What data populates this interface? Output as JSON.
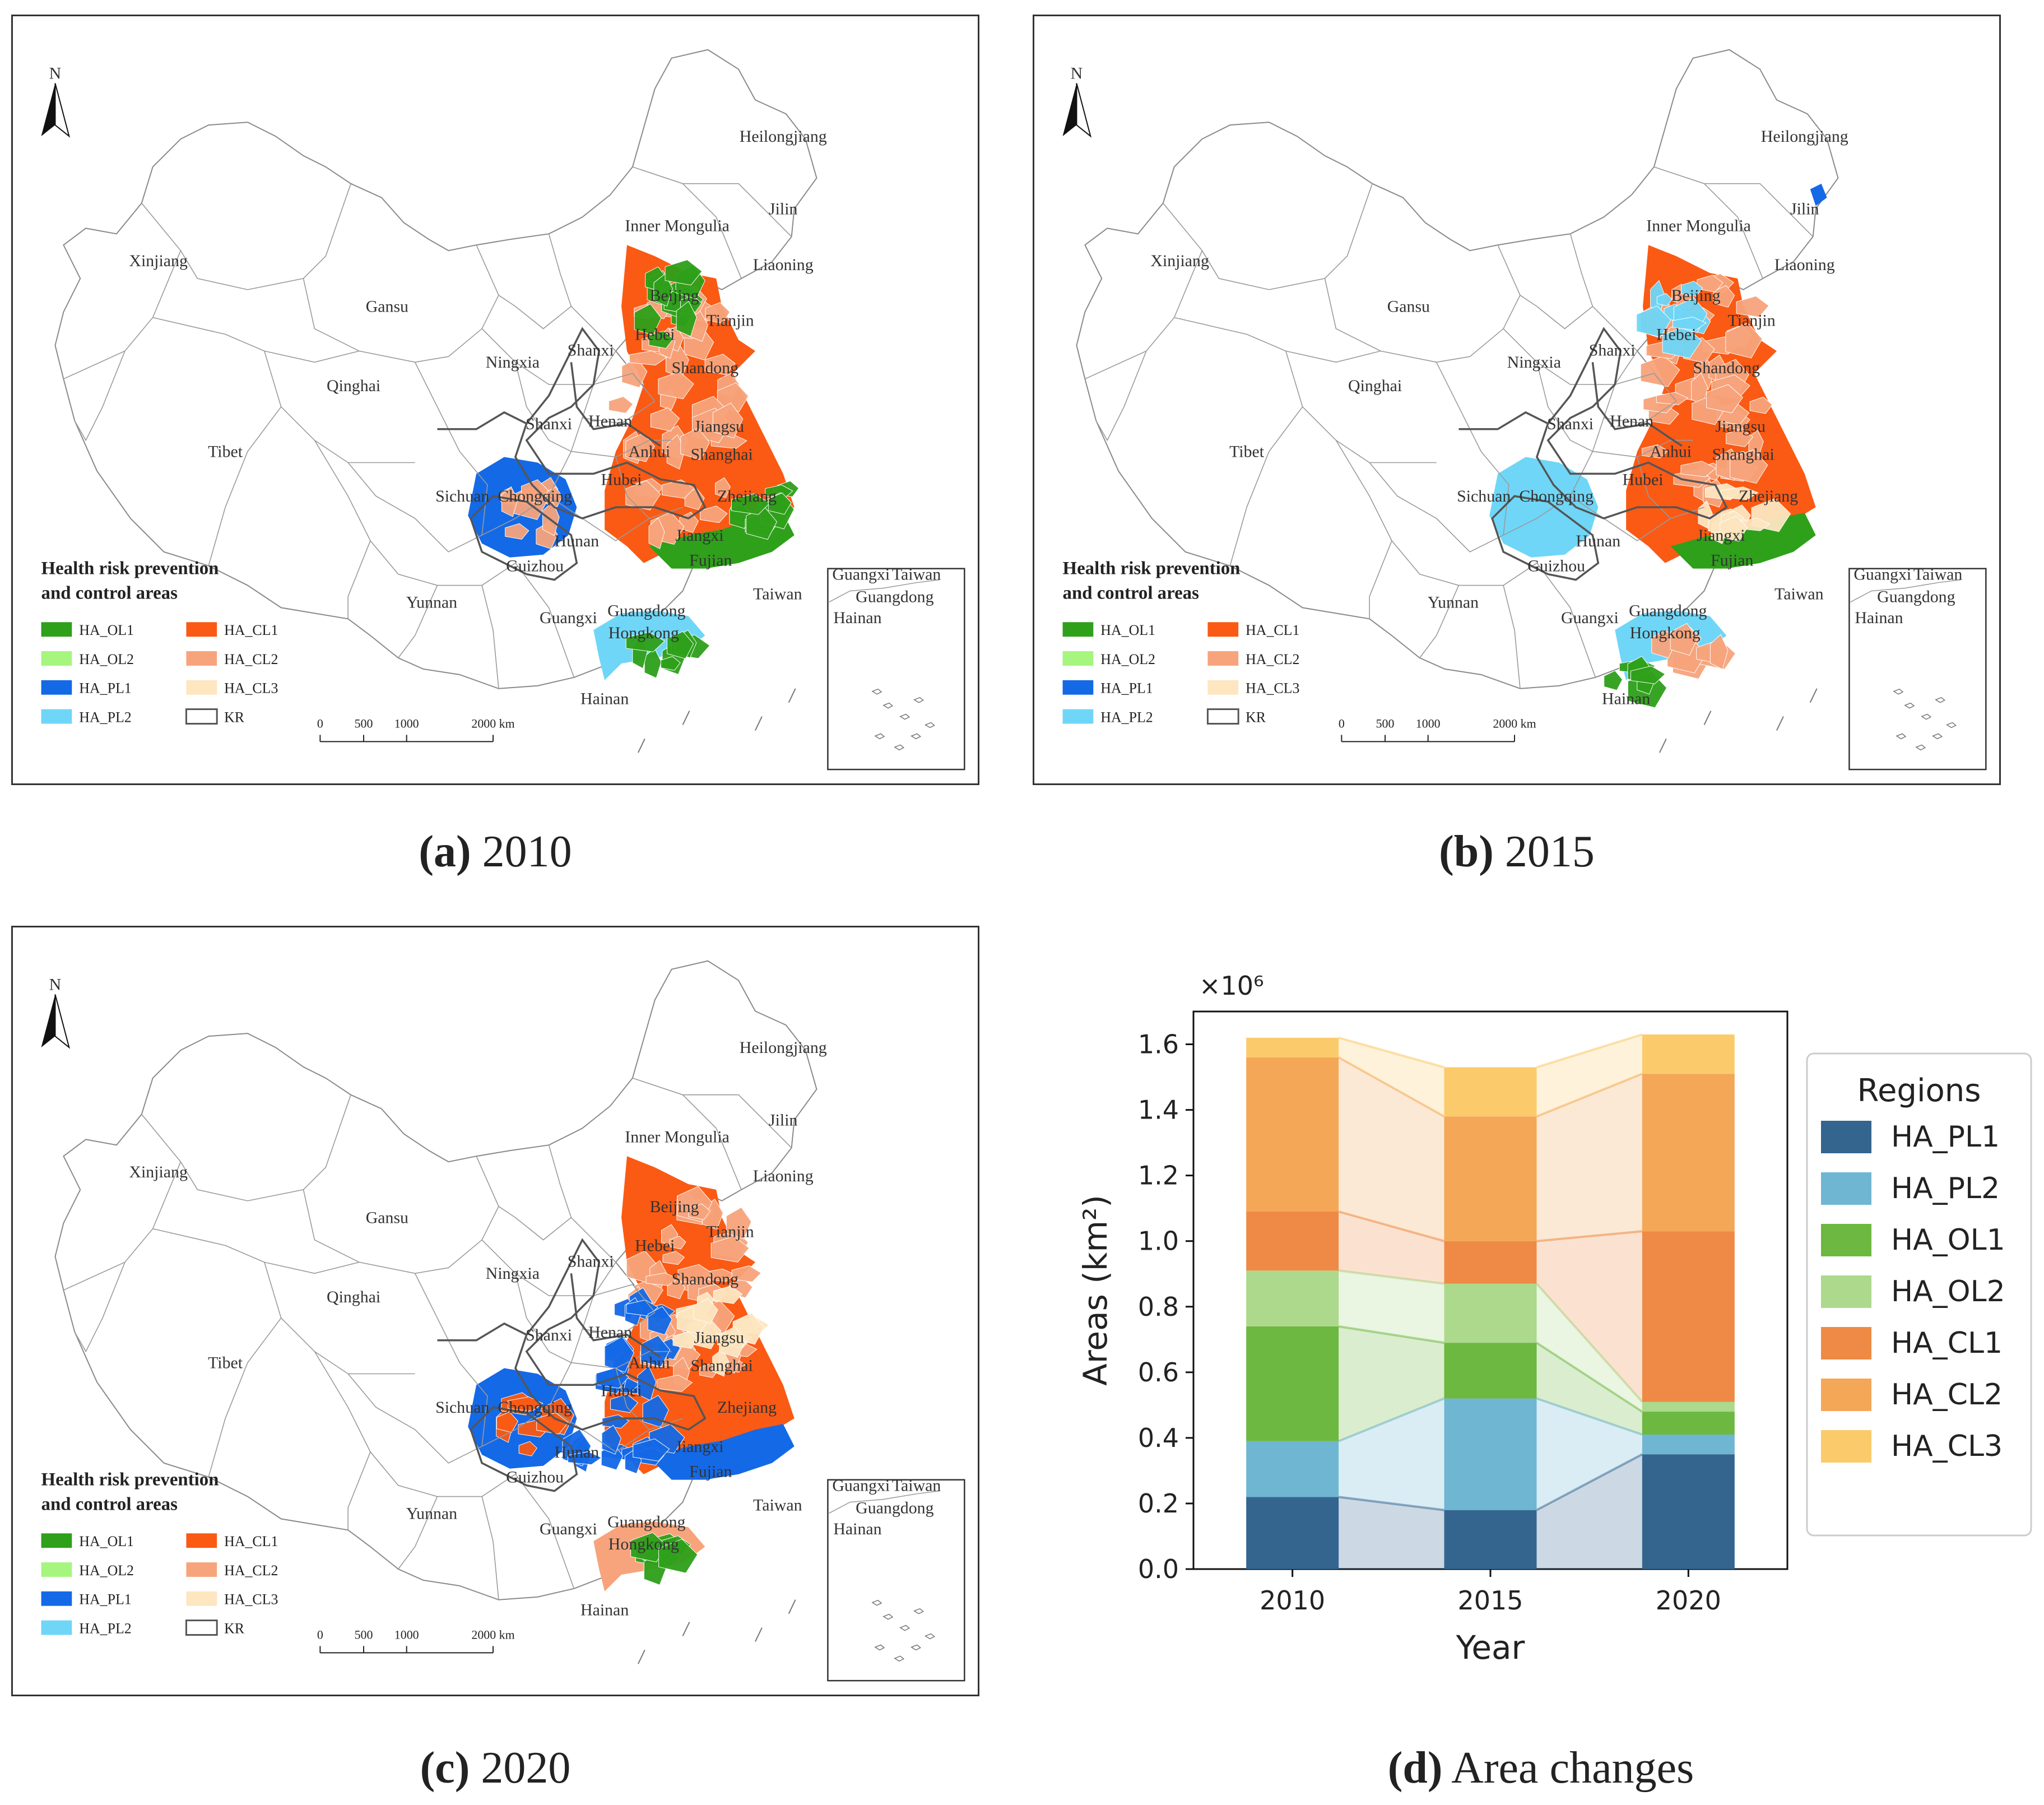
{
  "maps": {
    "legend_title_line1": "Health risk prevention",
    "legend_title_line2": "and control areas",
    "legend_items": [
      {
        "label": "HA_OL1",
        "color": "#2ea01a"
      },
      {
        "label": "HA_OL2",
        "color": "#a6f57e"
      },
      {
        "label": "HA_PL1",
        "color": "#1469e6"
      },
      {
        "label": "HA_PL2",
        "color": "#6fd6f7"
      },
      {
        "label": "HA_CL1",
        "color": "#fa5a14"
      },
      {
        "label": "HA_CL2",
        "color": "#f7a47c"
      },
      {
        "label": "HA_CL3",
        "color": "#fde6c0"
      },
      {
        "label": "KR",
        "color": "#555555"
      }
    ],
    "north_label": "N",
    "scale_labels": [
      "0",
      "500",
      "1000",
      "2000 km"
    ],
    "province_labels": [
      "Heilongjiang",
      "Jilin",
      "Inner Mongulia",
      "Liaoning",
      "Xinjiang",
      "Gansu",
      "Beijing",
      "Tianjin",
      "Hebei",
      "Shanxi",
      "Ningxia",
      "Qinghai",
      "Shandong",
      "Shanxi",
      "Henan",
      "Jiangsu",
      "Tibet",
      "Anhui",
      "Shanghai",
      "Sichuan",
      "Chongqing",
      "Hubei",
      "Zhejiang",
      "Hunan",
      "Jiangxi",
      "Fujian",
      "Guizhou",
      "Yunnan",
      "Taiwan",
      "Guangxi",
      "Guangdong",
      "Hongkong",
      "Hainan"
    ],
    "inset_labels": [
      "Guangxi",
      "Taiwan",
      "Guangdong",
      "Hainan"
    ]
  },
  "captions": {
    "a": {
      "letter": "(a)",
      "text": " 2010"
    },
    "b": {
      "letter": "(b)",
      "text": " 2015"
    },
    "c": {
      "letter": "(c)",
      "text": " 2020"
    },
    "d": {
      "letter": "(d)",
      "text": " Area changes"
    }
  },
  "chart_data": {
    "type": "bar",
    "stacked": true,
    "categories": [
      "2010",
      "2015",
      "2020"
    ],
    "series": [
      {
        "name": "HA_PL1",
        "color": "#33658f",
        "values": [
          0.22,
          0.18,
          0.35
        ]
      },
      {
        "name": "HA_PL2",
        "color": "#6fb6d3",
        "values": [
          0.17,
          0.34,
          0.06
        ]
      },
      {
        "name": "HA_OL1",
        "color": "#6cb840",
        "values": [
          0.35,
          0.17,
          0.07
        ]
      },
      {
        "name": "HA_OL2",
        "color": "#acd98c",
        "values": [
          0.17,
          0.18,
          0.03
        ]
      },
      {
        "name": "HA_CL1",
        "color": "#ee8a45",
        "values": [
          0.18,
          0.13,
          0.52
        ]
      },
      {
        "name": "HA_CL2",
        "color": "#f4a757",
        "values": [
          0.47,
          0.38,
          0.48
        ]
      },
      {
        "name": "HA_CL3",
        "color": "#fbcb6b",
        "values": [
          0.06,
          0.15,
          0.12
        ]
      }
    ],
    "multiplier_label": "×10⁶",
    "xlabel": "Year",
    "ylabel": "Areas (km²)",
    "ylim": [
      0,
      1.7
    ],
    "yticks": [
      "0.0",
      "0.2",
      "0.4",
      "0.6",
      "0.8",
      "1.0",
      "1.2",
      "1.4",
      "1.6"
    ],
    "legend_title": "Regions",
    "legend_position": "right"
  }
}
